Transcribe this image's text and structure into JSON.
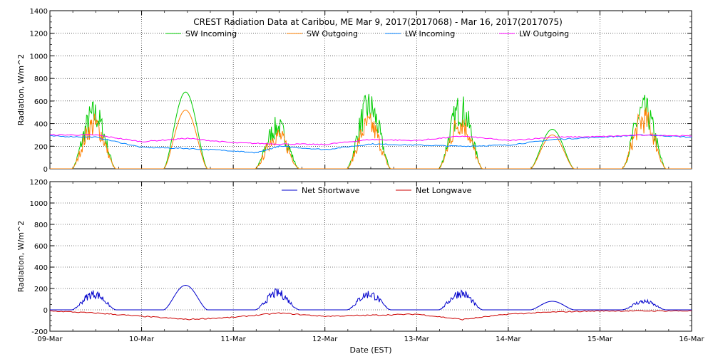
{
  "chart_data": [
    {
      "type": "line",
      "title": "CREST Radiation Data at Caribou, ME   Mar  9, 2017(2017068) - Mar 16, 2017(2017075)",
      "xlabel": "",
      "ylabel": "Radiation, W/m^2",
      "xlim": [
        "2017-03-09",
        "2017-03-16"
      ],
      "ylim": [
        0,
        1400
      ],
      "yticks": [
        0,
        200,
        400,
        600,
        800,
        1000,
        1200,
        1400
      ],
      "grid": true,
      "legend_position": "top-center",
      "series": [
        {
          "name": "SW Incoming",
          "color": "#00cc00",
          "days": [
            {
              "date": "2017-03-09",
              "peak": 620,
              "spiky": true
            },
            {
              "date": "2017-03-10",
              "peak": 680,
              "spiky": false
            },
            {
              "date": "2017-03-11",
              "peak": 470,
              "spiky": true
            },
            {
              "date": "2017-03-12",
              "peak": 700,
              "spiky": true
            },
            {
              "date": "2017-03-13",
              "peak": 680,
              "spiky": true
            },
            {
              "date": "2017-03-14",
              "peak": 350,
              "spiky": false
            },
            {
              "date": "2017-03-15",
              "peak": 660,
              "spiky": true
            }
          ]
        },
        {
          "name": "SW Outgoing",
          "color": "#ff8000",
          "days": [
            {
              "date": "2017-03-09",
              "peak": 500,
              "spiky": true
            },
            {
              "date": "2017-03-10",
              "peak": 520,
              "spiky": false
            },
            {
              "date": "2017-03-11",
              "peak": 380,
              "spiky": true
            },
            {
              "date": "2017-03-12",
              "peak": 500,
              "spiky": true
            },
            {
              "date": "2017-03-13",
              "peak": 530,
              "spiky": true
            },
            {
              "date": "2017-03-14",
              "peak": 300,
              "spiky": false
            },
            {
              "date": "2017-03-15",
              "peak": 560,
              "spiky": true
            }
          ]
        },
        {
          "name": "LW Incoming",
          "color": "#0080ff",
          "points": [
            [
              "2017-03-09 00:00",
              290
            ],
            [
              "2017-03-09 12:00",
              280
            ],
            [
              "2017-03-10 00:00",
              190
            ],
            [
              "2017-03-10 12:00",
              180
            ],
            [
              "2017-03-11 00:00",
              160
            ],
            [
              "2017-03-11 06:00",
              140
            ],
            [
              "2017-03-11 12:00",
              200
            ],
            [
              "2017-03-12 00:00",
              170
            ],
            [
              "2017-03-12 12:00",
              220
            ],
            [
              "2017-03-13 00:00",
              210
            ],
            [
              "2017-03-13 12:00",
              200
            ],
            [
              "2017-03-14 00:00",
              210
            ],
            [
              "2017-03-14 12:00",
              260
            ],
            [
              "2017-03-15 00:00",
              280
            ],
            [
              "2017-03-15 12:00",
              300
            ],
            [
              "2017-03-16 00:00",
              280
            ]
          ]
        },
        {
          "name": "LW Outgoing",
          "color": "#ff00ff",
          "points": [
            [
              "2017-03-09 00:00",
              300
            ],
            [
              "2017-03-09 12:00",
              300
            ],
            [
              "2017-03-10 00:00",
              240
            ],
            [
              "2017-03-10 12:00",
              270
            ],
            [
              "2017-03-11 00:00",
              230
            ],
            [
              "2017-03-11 12:00",
              220
            ],
            [
              "2017-03-12 00:00",
              215
            ],
            [
              "2017-03-12 12:00",
              260
            ],
            [
              "2017-03-13 00:00",
              250
            ],
            [
              "2017-03-13 12:00",
              290
            ],
            [
              "2017-03-14 00:00",
              250
            ],
            [
              "2017-03-14 12:00",
              280
            ],
            [
              "2017-03-15 00:00",
              285
            ],
            [
              "2017-03-15 12:00",
              300
            ],
            [
              "2017-03-16 00:00",
              290
            ]
          ]
        }
      ]
    },
    {
      "type": "line",
      "title": "",
      "xlabel": "Date (EST)",
      "ylabel": "Radiation, W/m^2",
      "xlim": [
        "2017-03-09",
        "2017-03-16"
      ],
      "ylim": [
        -200,
        1200
      ],
      "yticks": [
        -200,
        0,
        200,
        400,
        600,
        800,
        1000,
        1200
      ],
      "xticks": [
        "09-Mar",
        "10-Mar",
        "11-Mar",
        "12-Mar",
        "13-Mar",
        "14-Mar",
        "15-Mar",
        "16-Mar"
      ],
      "grid": true,
      "legend_position": "top-center",
      "series": [
        {
          "name": "Net Shortwave",
          "color": "#0000cc",
          "days": [
            {
              "date": "2017-03-09",
              "peak": 190,
              "spiky": true
            },
            {
              "date": "2017-03-10",
              "peak": 230,
              "spiky": false
            },
            {
              "date": "2017-03-11",
              "peak": 200,
              "spiky": true
            },
            {
              "date": "2017-03-12",
              "peak": 190,
              "spiky": true
            },
            {
              "date": "2017-03-13",
              "peak": 200,
              "spiky": true
            },
            {
              "date": "2017-03-14",
              "peak": 80,
              "spiky": false
            },
            {
              "date": "2017-03-15",
              "peak": 100,
              "spiky": true
            }
          ]
        },
        {
          "name": "Net Longwave",
          "color": "#cc0000",
          "points": [
            [
              "2017-03-09 00:00",
              -10
            ],
            [
              "2017-03-09 12:00",
              -30
            ],
            [
              "2017-03-10 00:00",
              -60
            ],
            [
              "2017-03-10 12:00",
              -90
            ],
            [
              "2017-03-11 00:00",
              -70
            ],
            [
              "2017-03-11 12:00",
              -30
            ],
            [
              "2017-03-12 00:00",
              -60
            ],
            [
              "2017-03-12 12:00",
              -50
            ],
            [
              "2017-03-13 00:00",
              -40
            ],
            [
              "2017-03-13 12:00",
              -90
            ],
            [
              "2017-03-14 00:00",
              -40
            ],
            [
              "2017-03-14 12:00",
              -20
            ],
            [
              "2017-03-15 00:00",
              -10
            ],
            [
              "2017-03-15 12:00",
              -10
            ],
            [
              "2017-03-16 00:00",
              -10
            ]
          ]
        }
      ]
    }
  ]
}
